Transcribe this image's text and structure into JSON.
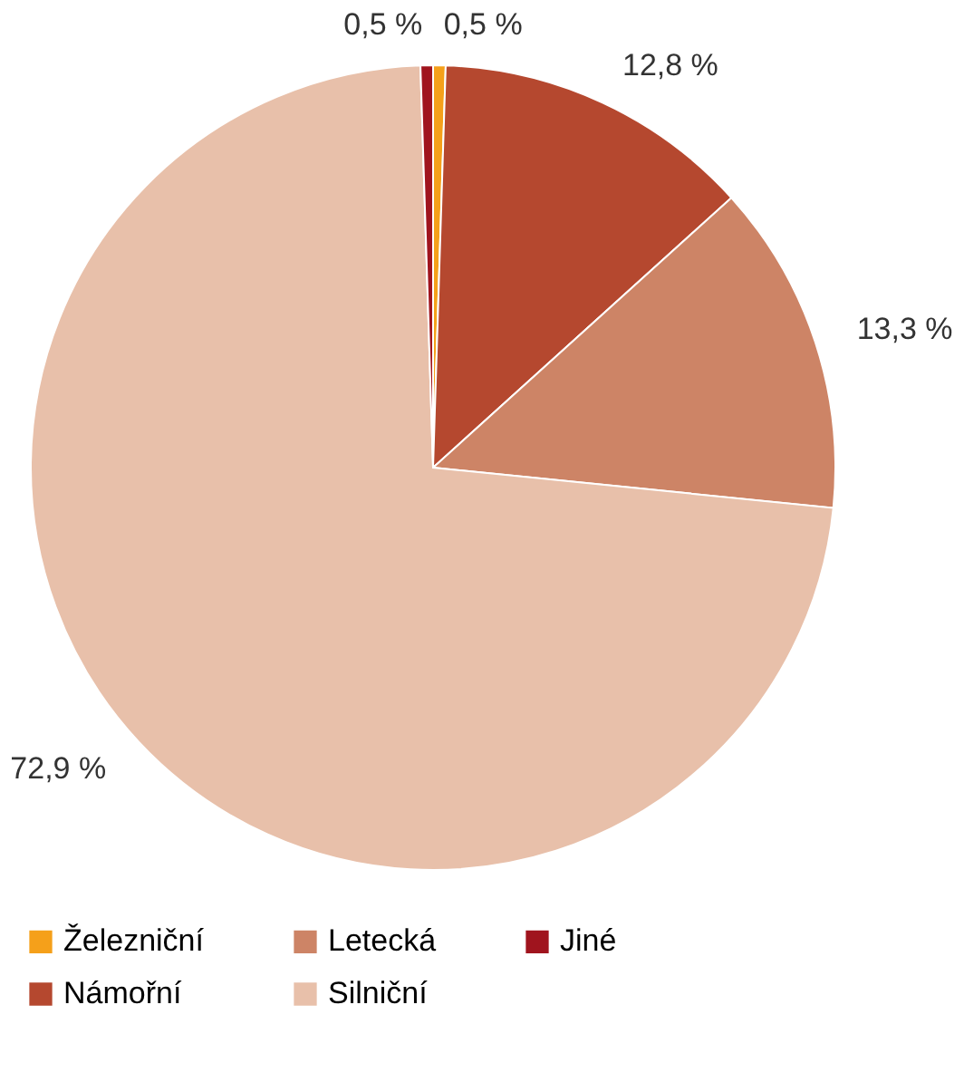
{
  "chart_data": {
    "type": "pie",
    "categories": [
      "Železniční",
      "Námořní",
      "Letecká",
      "Silniční",
      "Jiné"
    ],
    "values": [
      0.5,
      12.8,
      13.3,
      72.9,
      0.5
    ],
    "colors": [
      "#f5a01a",
      "#b5482f",
      "#cd8466",
      "#e8c0aa",
      "#a0141e"
    ],
    "value_labels": [
      "0,5 %",
      "12,8 %",
      "13,3 %",
      "72,9 %",
      "0,5 %"
    ],
    "legend": "bottom"
  }
}
